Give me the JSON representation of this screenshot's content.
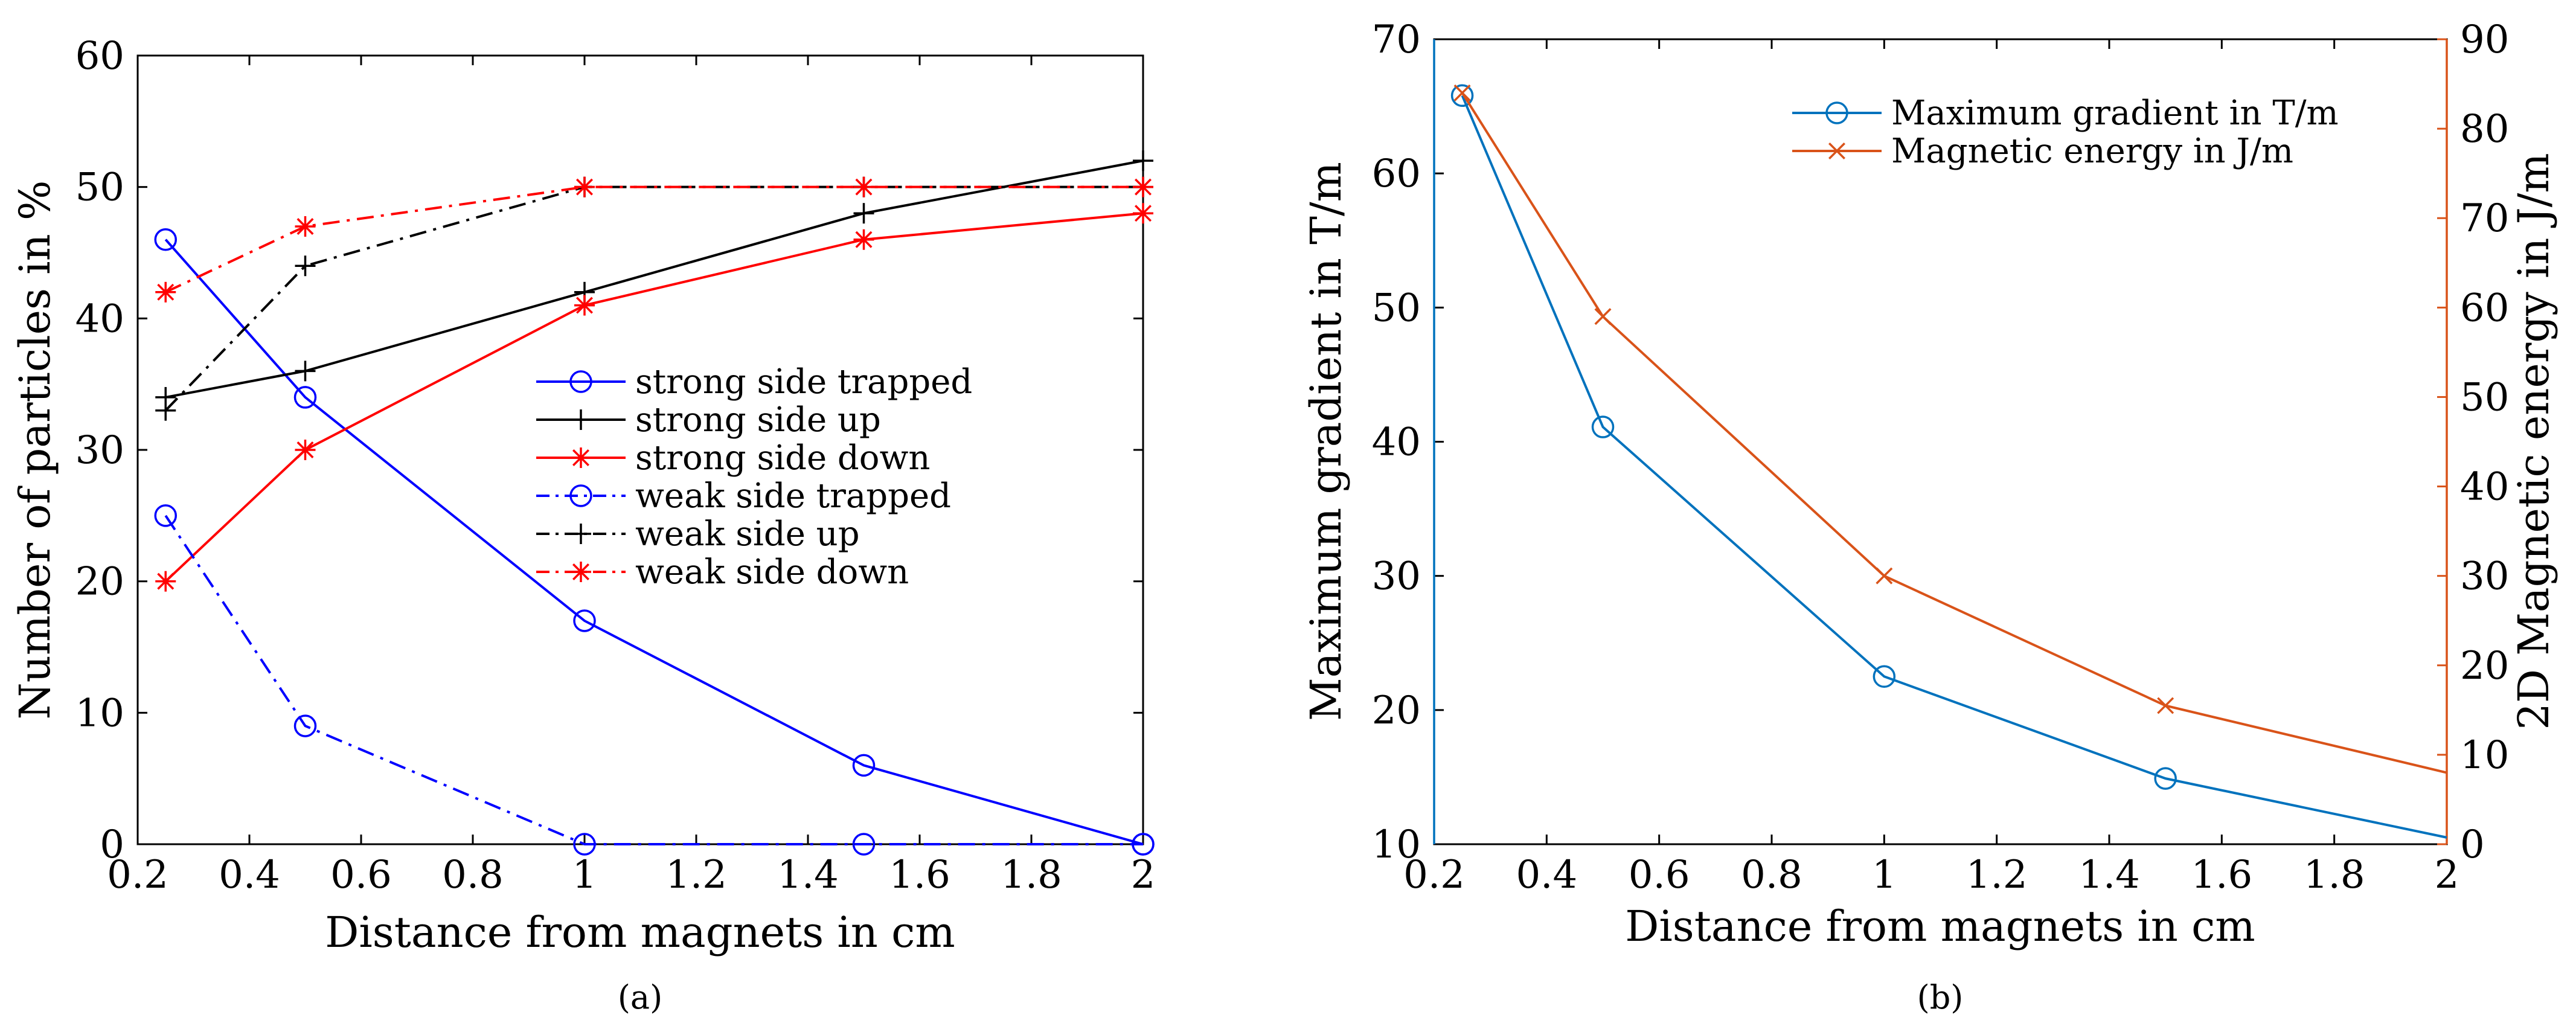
{
  "chart_data": [
    {
      "type": "line",
      "panel": "a",
      "caption": "(a)",
      "xlabel": "Distance from magnets in cm",
      "ylabel": "Number of particles in %",
      "xlim": [
        0.2,
        2
      ],
      "ylim": [
        0,
        60
      ],
      "xticks": [
        "0.2",
        "0.4",
        "0.6",
        "0.8",
        "1",
        "1.2",
        "1.4",
        "1.6",
        "1.8",
        "2"
      ],
      "yticks": [
        "0",
        "10",
        "20",
        "30",
        "40",
        "50",
        "60"
      ],
      "legend_position": "center-right",
      "series": [
        {
          "name": "strong side trapped",
          "color": "#0000FF",
          "style": "solid",
          "marker": "circle",
          "x": [
            0.25,
            0.5,
            1,
            1.5,
            2
          ],
          "values": [
            46,
            34,
            17,
            6,
            0
          ]
        },
        {
          "name": "strong side up",
          "color": "#000000",
          "style": "solid",
          "marker": "plus",
          "x": [
            0.25,
            0.5,
            1,
            1.5,
            2
          ],
          "values": [
            34,
            36,
            42,
            48,
            52
          ]
        },
        {
          "name": "strong side down",
          "color": "#FF0000",
          "style": "solid",
          "marker": "star",
          "x": [
            0.25,
            0.5,
            1,
            1.5,
            2
          ],
          "values": [
            20,
            30,
            41,
            46,
            48
          ]
        },
        {
          "name": "weak side trapped",
          "color": "#0000FF",
          "style": "dashdot",
          "marker": "circle",
          "x": [
            0.25,
            0.5,
            1,
            1.5,
            2
          ],
          "values": [
            25,
            9,
            0,
            0,
            0
          ]
        },
        {
          "name": "weak side up",
          "color": "#000000",
          "style": "dashdot",
          "marker": "plus",
          "x": [
            0.25,
            0.5,
            1,
            1.5,
            2
          ],
          "values": [
            33,
            44,
            50,
            50,
            50
          ]
        },
        {
          "name": "weak side down",
          "color": "#FF0000",
          "style": "dashdot",
          "marker": "star",
          "x": [
            0.25,
            0.5,
            1,
            1.5,
            2
          ],
          "values": [
            42,
            47,
            50,
            50,
            50
          ]
        }
      ]
    },
    {
      "type": "line",
      "panel": "b",
      "caption": "(b)",
      "xlabel": "Distance from magnets in cm",
      "ylabel": "Maximum gradient in T/m",
      "ylabel_right": "2D Magnetic energy in J/m",
      "xlim": [
        0.2,
        2
      ],
      "ylim": [
        10,
        70
      ],
      "ylim_right": [
        0,
        90
      ],
      "xticks": [
        "0.2",
        "0.4",
        "0.6",
        "0.8",
        "1",
        "1.2",
        "1.4",
        "1.6",
        "1.8",
        "2"
      ],
      "yticks": [
        "10",
        "20",
        "30",
        "40",
        "50",
        "60",
        "70"
      ],
      "yticks_right": [
        "0",
        "10",
        "20",
        "30",
        "40",
        "50",
        "60",
        "70",
        "80",
        "90"
      ],
      "legend_position": "top-right",
      "series": [
        {
          "name": "Maximum gradient in T/m",
          "color": "#0072BD",
          "style": "solid",
          "marker": "circle",
          "axis": "left",
          "x": [
            0.25,
            0.5,
            1,
            1.5,
            2
          ],
          "values": [
            65.8,
            41.1,
            22.5,
            14.9,
            10.5
          ],
          "marked_points": 4
        },
        {
          "name": "Magnetic energy in J/m",
          "color": "#D95319",
          "style": "solid",
          "marker": "x",
          "axis": "right",
          "x": [
            0.25,
            0.5,
            1,
            1.5,
            2
          ],
          "values": [
            84,
            59,
            30,
            15.5,
            8
          ],
          "marked_points": 4
        }
      ]
    }
  ]
}
